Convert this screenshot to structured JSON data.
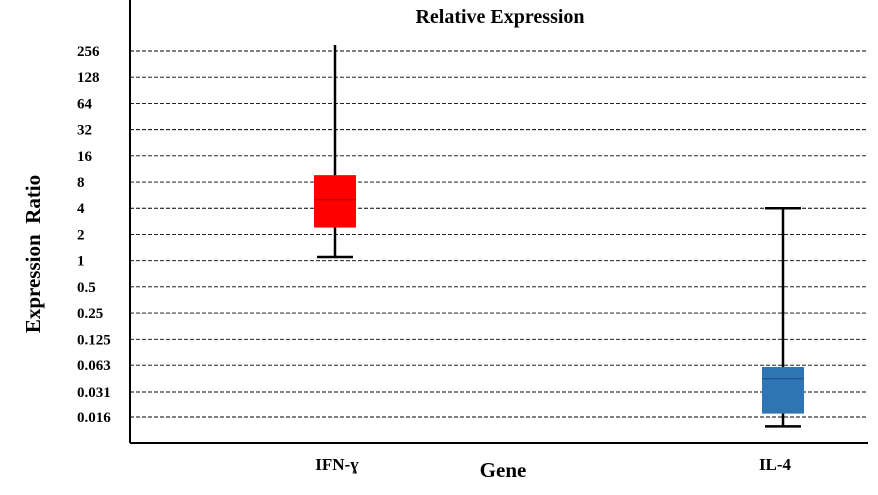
{
  "chart_data": {
    "type": "box",
    "title": "Relative Expression",
    "xlabel": "Gene",
    "ylabel": "Expression  Ratio",
    "y_scale": "log2",
    "y_ticks": [
      "256",
      "128",
      "64",
      "32",
      "16",
      "8",
      "4",
      "2",
      "1",
      "0.5",
      "0.25",
      "0.125",
      "0.063",
      "0.031",
      "0.016"
    ],
    "y_tick_values": [
      256,
      128,
      64,
      32,
      16,
      8,
      4,
      2,
      1,
      0.5,
      0.25,
      0.125,
      0.063,
      0.031,
      0.016
    ],
    "grid": "horizontal dashed",
    "categories": [
      "IFN-ɣ",
      "IL-4"
    ],
    "boxes": [
      {
        "category": "IFN-ɣ",
        "color": "#ff0000",
        "whisker_min": 1.1,
        "q1": 2.4,
        "median": 5.0,
        "q3": 9.6,
        "whisker_max": 300
      },
      {
        "category": "IL-4",
        "color": "#2e75b6",
        "whisker_min": 0.0125,
        "q1": 0.0175,
        "median": 0.044,
        "q3": 0.06,
        "whisker_max": 4.0
      }
    ]
  }
}
